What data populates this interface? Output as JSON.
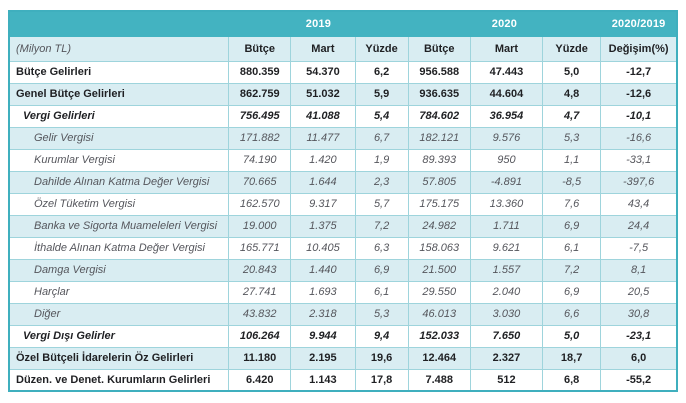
{
  "colors": {
    "header_teal": "#43b3c1",
    "row_alt_blue": "#d9edf2",
    "border_teal": "#9ed4dc",
    "text_dark": "#1f2023",
    "text_gray_italic": "#55565c"
  },
  "table": {
    "unit_label": "(Milyon TL)",
    "group_headers": [
      "2019",
      "2020",
      "2020/2019"
    ],
    "column_headers": [
      "Bütçe",
      "Mart",
      "Yüzde",
      "Bütçe",
      "Mart",
      "Yüzde",
      "Değişim(%)"
    ],
    "rows": [
      {
        "label": "Bütçe Gelirleri",
        "style": "bold",
        "indent": 0,
        "values": [
          "880.359",
          "54.370",
          "6,2",
          "956.588",
          "47.443",
          "5,0",
          "-12,7"
        ]
      },
      {
        "label": "Genel Bütçe Gelirleri",
        "style": "bold",
        "indent": 0,
        "values": [
          "862.759",
          "51.032",
          "5,9",
          "936.635",
          "44.604",
          "4,8",
          "-12,6"
        ]
      },
      {
        "label": "Vergi Gelirleri",
        "style": "bold-italic",
        "indent": 1,
        "values": [
          "756.495",
          "41.088",
          "5,4",
          "784.602",
          "36.954",
          "4,7",
          "-10,1"
        ]
      },
      {
        "label": "Gelir Vergisi",
        "style": "italic",
        "indent": 2,
        "values": [
          "171.882",
          "11.477",
          "6,7",
          "182.121",
          "9.576",
          "5,3",
          "-16,6"
        ]
      },
      {
        "label": "Kurumlar Vergisi",
        "style": "italic",
        "indent": 2,
        "values": [
          "74.190",
          "1.420",
          "1,9",
          "89.393",
          "950",
          "1,1",
          "-33,1"
        ]
      },
      {
        "label": "Dahilde Alınan Katma Değer Vergisi",
        "style": "italic",
        "indent": 2,
        "values": [
          "70.665",
          "1.644",
          "2,3",
          "57.805",
          "-4.891",
          "-8,5",
          "-397,6"
        ]
      },
      {
        "label": "Özel Tüketim Vergisi",
        "style": "italic",
        "indent": 2,
        "values": [
          "162.570",
          "9.317",
          "5,7",
          "175.175",
          "13.360",
          "7,6",
          "43,4"
        ]
      },
      {
        "label": "Banka ve Sigorta Muameleleri Vergisi",
        "style": "italic",
        "indent": 2,
        "values": [
          "19.000",
          "1.375",
          "7,2",
          "24.982",
          "1.711",
          "6,9",
          "24,4"
        ]
      },
      {
        "label": "İthalde Alınan Katma Değer Vergisi",
        "style": "italic",
        "indent": 2,
        "values": [
          "165.771",
          "10.405",
          "6,3",
          "158.063",
          "9.621",
          "6,1",
          "-7,5"
        ]
      },
      {
        "label": "Damga Vergisi",
        "style": "italic",
        "indent": 2,
        "values": [
          "20.843",
          "1.440",
          "6,9",
          "21.500",
          "1.557",
          "7,2",
          "8,1"
        ]
      },
      {
        "label": "Harçlar",
        "style": "italic",
        "indent": 2,
        "values": [
          "27.741",
          "1.693",
          "6,1",
          "29.550",
          "2.040",
          "6,9",
          "20,5"
        ]
      },
      {
        "label": "Diğer",
        "style": "italic",
        "indent": 2,
        "values": [
          "43.832",
          "2.318",
          "5,3",
          "46.013",
          "3.030",
          "6,6",
          "30,8"
        ]
      },
      {
        "label": "Vergi Dışı Gelirler",
        "style": "bold-italic",
        "indent": 1,
        "values": [
          "106.264",
          "9.944",
          "9,4",
          "152.033",
          "7.650",
          "5,0",
          "-23,1"
        ]
      },
      {
        "label": "Özel Bütçeli İdarelerin Öz Gelirleri",
        "style": "bold",
        "indent": 0,
        "values": [
          "11.180",
          "2.195",
          "19,6",
          "12.464",
          "2.327",
          "18,7",
          "6,0"
        ]
      },
      {
        "label": "Düzen. ve Denet. Kurumların Gelirleri",
        "style": "bold",
        "indent": 0,
        "values": [
          "6.420",
          "1.143",
          "17,8",
          "7.488",
          "512",
          "6,8",
          "-55,2"
        ]
      }
    ]
  }
}
